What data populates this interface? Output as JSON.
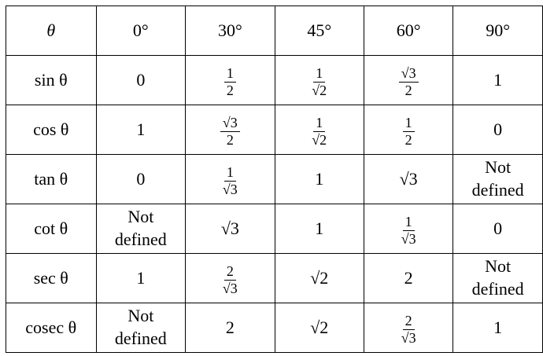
{
  "table": {
    "header": [
      "θ",
      "0°",
      "30°",
      "45°",
      "60°",
      "90°"
    ],
    "rows": [
      {
        "label": "sin θ",
        "cells": [
          "0",
          {
            "num": "1",
            "den": "2"
          },
          {
            "num": "1",
            "den": "√2"
          },
          {
            "num": "√3",
            "den": "2"
          },
          "1"
        ]
      },
      {
        "label": "cos θ",
        "cells": [
          "1",
          {
            "num": "√3",
            "den": "2"
          },
          {
            "num": "1",
            "den": "√2"
          },
          {
            "num": "1",
            "den": "2"
          },
          "0"
        ]
      },
      {
        "label": "tan θ",
        "cells": [
          "0",
          {
            "num": "1",
            "den": "√3"
          },
          "1",
          "√3",
          "Not defined"
        ]
      },
      {
        "label": "cot θ",
        "cells": [
          "Not defined",
          "√3",
          "1",
          {
            "num": "1",
            "den": "√3"
          },
          "0"
        ]
      },
      {
        "label": "sec θ",
        "cells": [
          "1",
          {
            "num": "2",
            "den": "√3"
          },
          "√2",
          "2",
          "Not defined"
        ]
      },
      {
        "label": "cosec θ",
        "cells": [
          "Not defined",
          "2",
          "√2",
          {
            "num": "2",
            "den": "√3"
          },
          "1"
        ]
      }
    ]
  }
}
